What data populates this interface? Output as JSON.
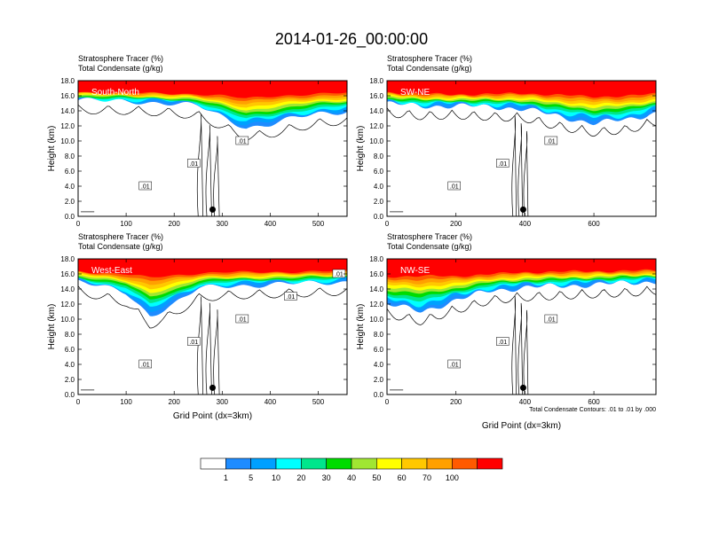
{
  "title": "2014-01-26_00:00:00",
  "colors": {
    "bins": [
      "#ffffff",
      "#1e8cff",
      "#00a0ff",
      "#00ffff",
      "#00e68c",
      "#00dc00",
      "#a0e632",
      "#ffff00",
      "#ffc800",
      "#ffa000",
      "#ff5a00",
      "#ff0000"
    ],
    "contour": "#000000",
    "frame": "#000000"
  },
  "colorbar": {
    "labels": [
      "1",
      "5",
      "10",
      "20",
      "30",
      "40",
      "50",
      "60",
      "70",
      "100"
    ]
  },
  "contour_note": "Total Condensate Contours: .01 to .01 by .000",
  "chart_data": [
    {
      "type": "heatmap",
      "id": "south-north",
      "subtitle_line1": "Stratosphere Tracer   (%)",
      "subtitle_line2": "Total Condensate   (g/kg)",
      "section": "South-North",
      "ylabel": "Height (km)",
      "xlabel": "",
      "xlim": [
        0,
        560
      ],
      "ylim": [
        0,
        18
      ],
      "xticks": [
        "0",
        "100",
        "200",
        "300",
        "400",
        "500"
      ],
      "yticks": [
        "0.0",
        "2.0",
        "4.0",
        "6.0",
        "8.0",
        "10.0",
        "12.0",
        "14.0",
        "16.0",
        "18.0"
      ],
      "marker_x": 280,
      "contour_labels": [
        ".01",
        ".01",
        ".01"
      ],
      "profile": {
        "x": [
          0,
          100,
          200,
          250,
          300,
          350,
          400,
          450,
          500,
          560
        ],
        "base_km": [
          15.4,
          15.3,
          15.0,
          14.6,
          13.2,
          11.8,
          12.2,
          13.0,
          13.6,
          14.0
        ],
        "top_km": [
          16.6,
          16.5,
          16.4,
          16.4,
          16.3,
          16.0,
          16.3,
          16.4,
          16.5,
          16.6
        ]
      }
    },
    {
      "type": "heatmap",
      "id": "sw-ne",
      "subtitle_line1": "Stratosphere Tracer   (%)",
      "subtitle_line2": "Total Condensate   (g/kg)",
      "section": "SW-NE",
      "ylabel": "Height (km)",
      "xlabel": "",
      "xlim": [
        0,
        780
      ],
      "ylim": [
        0,
        18
      ],
      "xticks": [
        "0",
        "200",
        "400",
        "600"
      ],
      "yticks": [
        "0.0",
        "2.0",
        "4.0",
        "6.0",
        "8.0",
        "10.0",
        "12.0",
        "14.0",
        "16.0",
        "18.0"
      ],
      "marker_x": 395,
      "contour_labels": [
        ".01",
        ".01",
        ".01"
      ],
      "profile": {
        "x": [
          0,
          100,
          200,
          300,
          400,
          500,
          600,
          700,
          780
        ],
        "base_km": [
          15.0,
          14.6,
          14.7,
          14.5,
          14.3,
          13.2,
          12.4,
          12.8,
          13.8
        ],
        "top_km": [
          16.6,
          16.4,
          16.3,
          16.4,
          16.5,
          16.4,
          16.2,
          16.3,
          16.5
        ]
      }
    },
    {
      "type": "heatmap",
      "id": "west-east",
      "subtitle_line1": "Stratosphere Tracer   (%)",
      "subtitle_line2": "Total Condensate   (g/kg)",
      "section": "West-East",
      "ylabel": "Height (km)",
      "xlabel": "Grid Point (dx=3km)",
      "xlim": [
        0,
        560
      ],
      "ylim": [
        0,
        18
      ],
      "xticks": [
        "0",
        "100",
        "200",
        "300",
        "400",
        "500"
      ],
      "yticks": [
        "0.0",
        "2.0",
        "4.0",
        "6.0",
        "8.0",
        "10.0",
        "12.0",
        "14.0",
        "16.0",
        "18.0"
      ],
      "marker_x": 280,
      "contour_labels": [
        ".01",
        ".01",
        ".01",
        ".01",
        ".01"
      ],
      "profile": {
        "x": [
          0,
          100,
          150,
          200,
          250,
          300,
          400,
          500,
          560
        ],
        "base_km": [
          15.0,
          13.5,
          10.5,
          12.0,
          14.0,
          14.4,
          14.6,
          14.8,
          15.0
        ],
        "top_km": [
          16.5,
          16.2,
          16.0,
          16.2,
          16.3,
          16.4,
          16.4,
          16.5,
          16.5
        ]
      }
    },
    {
      "type": "heatmap",
      "id": "nw-se",
      "subtitle_line1": "Stratosphere Tracer   (%)",
      "subtitle_line2": "Total Condensate   (g/kg)",
      "section": "NW-SE",
      "ylabel": "Height (km)",
      "xlabel": "Grid Point (dx=3km)",
      "xlim": [
        0,
        780
      ],
      "ylim": [
        0,
        18
      ],
      "xticks": [
        "0",
        "200",
        "400",
        "600"
      ],
      "yticks": [
        "0.0",
        "2.0",
        "4.0",
        "6.0",
        "8.0",
        "10.0",
        "12.0",
        "14.0",
        "16.0",
        "18.0"
      ],
      "marker_x": 395,
      "contour_labels": [
        ".01",
        ".01",
        ".01"
      ],
      "profile": {
        "x": [
          0,
          100,
          200,
          300,
          400,
          500,
          600,
          700,
          780
        ],
        "base_km": [
          12.0,
          11.0,
          12.5,
          13.8,
          14.2,
          14.4,
          14.6,
          14.8,
          15.0
        ],
        "top_km": [
          16.0,
          16.2,
          16.0,
          16.2,
          16.4,
          16.5,
          16.5,
          16.6,
          16.6
        ]
      }
    }
  ]
}
